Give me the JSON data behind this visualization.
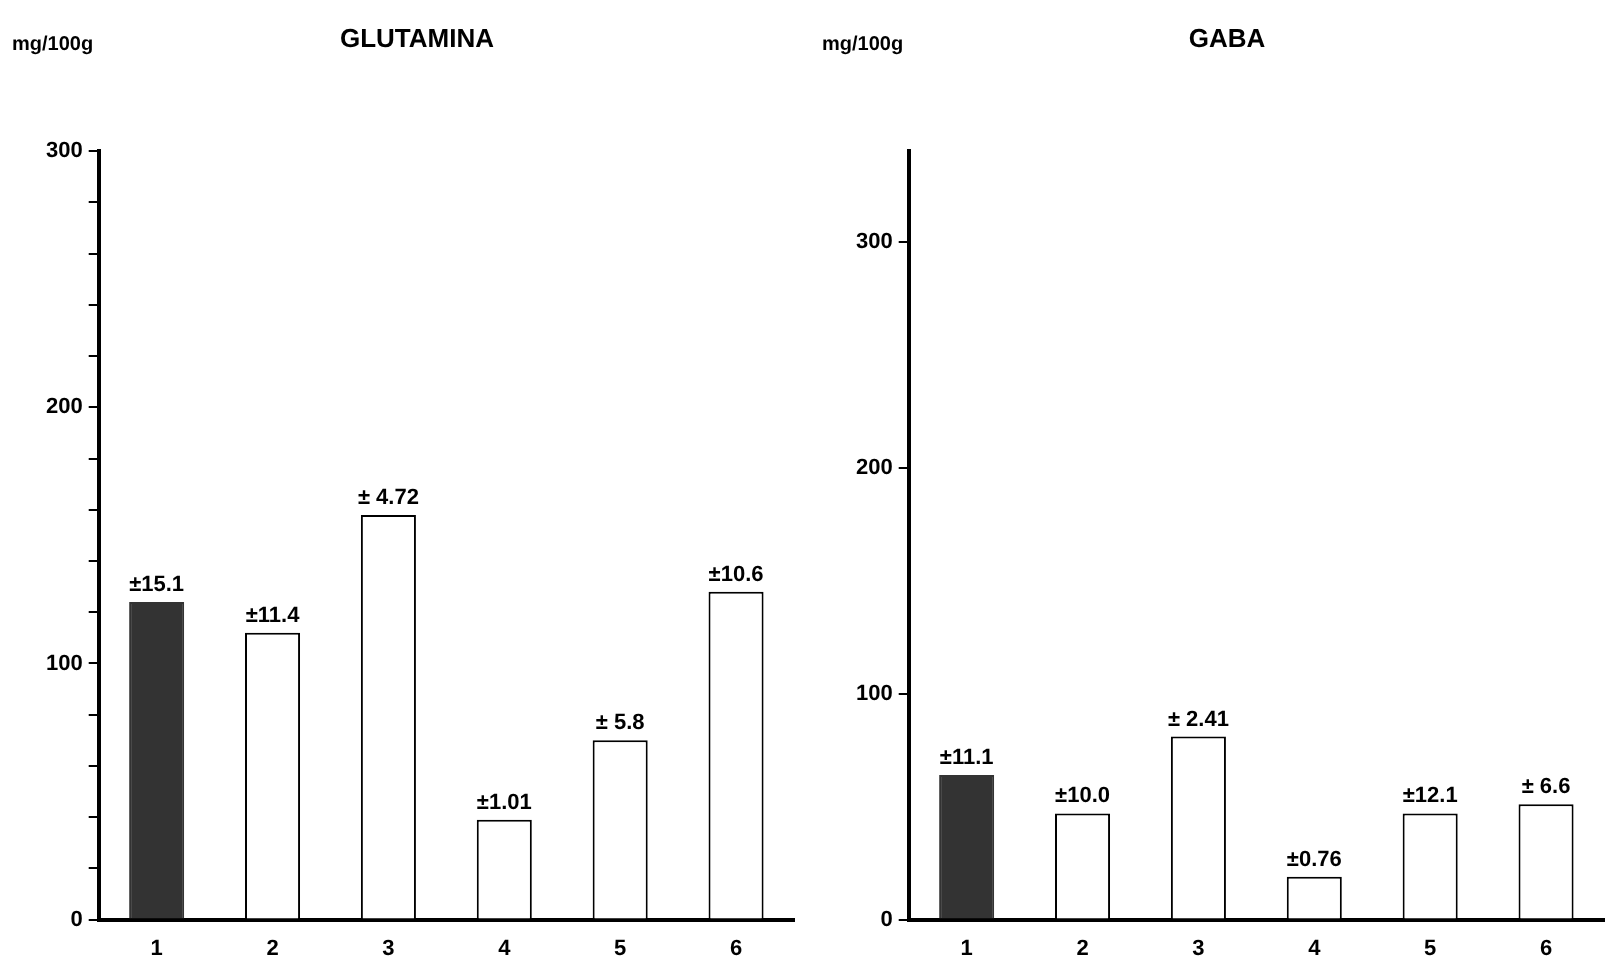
{
  "chart_data": [
    {
      "type": "bar",
      "title": "GLUTAMINA",
      "ylabel": "mg/100g",
      "categories": [
        "1",
        "2",
        "3",
        "4",
        "5",
        "6"
      ],
      "values": [
        124,
        112,
        158,
        39,
        70,
        128
      ],
      "colors": [
        "#333333",
        "#ffffff",
        "#ffffff",
        "#ffffff",
        "#ffffff",
        "#ffffff"
      ],
      "ylim": [
        0,
        300
      ],
      "yticks": [
        0,
        {
          "value": 20,
          "label": null
        },
        {
          "value": 40,
          "label": null
        },
        {
          "value": 60,
          "label": null
        },
        {
          "value": 80,
          "label": null
        },
        100,
        {
          "value": 120,
          "label": null
        },
        {
          "value": 140,
          "label": null
        },
        {
          "value": 160,
          "label": null
        },
        {
          "value": 180,
          "label": null
        },
        200,
        {
          "value": 220,
          "label": null
        },
        {
          "value": 240,
          "label": null
        },
        {
          "value": 260,
          "label": null
        },
        {
          "value": 280,
          "label": null
        },
        300
      ],
      "annotations": [
        {
          "text": "±15.1",
          "x": "1",
          "y": 124
        },
        {
          "text": "±11.4",
          "x": "2",
          "y": 112
        },
        {
          "text": "± 4.72",
          "x": "3",
          "y": 158
        },
        {
          "text": "±1.01",
          "x": "4",
          "y": 39
        },
        {
          "text": "± 5.8",
          "x": "5",
          "y": 70
        },
        {
          "text": "±10.6",
          "x": "6",
          "y": 128
        }
      ],
      "grid": false,
      "legend": false
    },
    {
      "type": "bar",
      "title": "GABA",
      "ylabel": "mg/100g",
      "categories": [
        "1",
        "2",
        "3",
        "4",
        "5",
        "6"
      ],
      "values": [
        64,
        47,
        81,
        19,
        47,
        51
      ],
      "colors": [
        "#333333",
        "#ffffff",
        "#ffffff",
        "#ffffff",
        "#ffffff",
        "#ffffff"
      ],
      "ylim": [
        0,
        340
      ],
      "yticks": [
        0,
        100,
        200,
        300
      ],
      "annotations": [
        {
          "text": "±11.1",
          "x": "1",
          "y": 64
        },
        {
          "text": "±10.0",
          "x": "2",
          "y": 47
        },
        {
          "text": "± 2.41",
          "x": "3",
          "y": 81
        },
        {
          "text": "±0.76",
          "x": "4",
          "y": 19
        },
        {
          "text": "±12.1",
          "x": "5",
          "y": 47
        },
        {
          "text": "± 6.6",
          "x": "6",
          "y": 51
        }
      ],
      "grid": false,
      "legend": false
    }
  ]
}
